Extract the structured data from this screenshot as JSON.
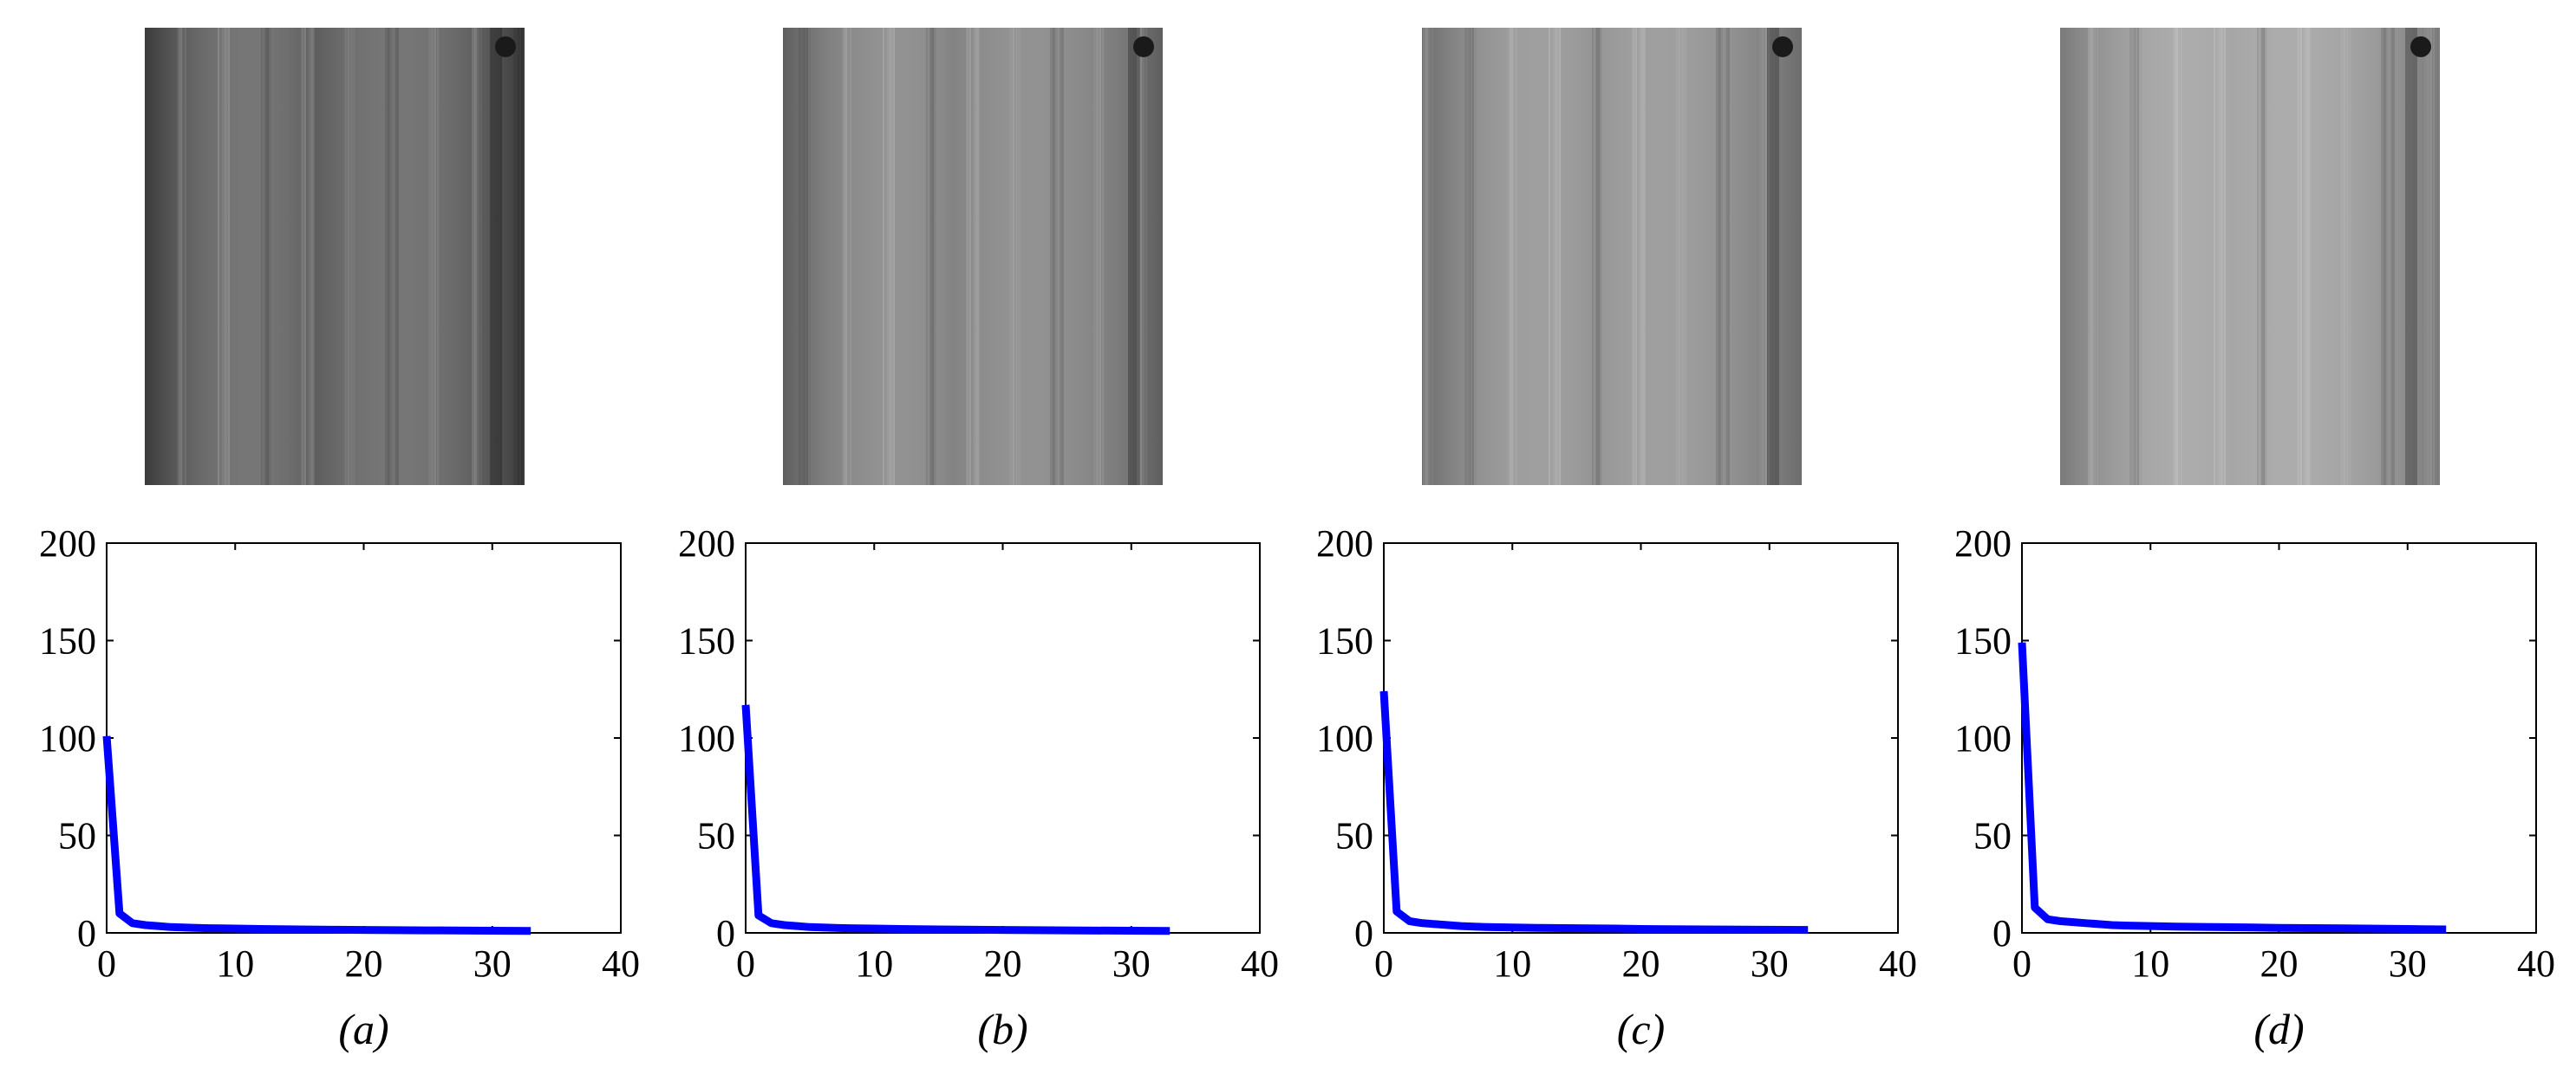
{
  "figure": {
    "captions": [
      "(a)",
      "(b)",
      "(c)",
      "(d)"
    ],
    "line_color": "#0000ff",
    "photo_description_colors": {
      "photo_a_base": "#3a3a3a",
      "photo_b_base": "#5e5e5e",
      "photo_c_base": "#6c6c6c",
      "photo_d_base": "#7a7a7a"
    }
  },
  "chart_data": [
    {
      "type": "line",
      "caption": "(a)",
      "xlim": [
        0,
        40
      ],
      "ylim": [
        0,
        200
      ],
      "xticks": [
        0,
        10,
        20,
        30,
        40
      ],
      "yticks": [
        0,
        50,
        100,
        150,
        200
      ],
      "grid": false,
      "series": [
        {
          "x": [
            0,
            1,
            2,
            3,
            4,
            5,
            6,
            7,
            8,
            10,
            12,
            15,
            18,
            20,
            25,
            30,
            33
          ],
          "y": [
            101,
            10,
            5,
            4,
            3.5,
            3,
            2.8,
            2.6,
            2.4,
            2.2,
            2,
            1.8,
            1.6,
            1.5,
            1.3,
            1.1,
            1.0
          ]
        }
      ]
    },
    {
      "type": "line",
      "caption": "(b)",
      "xlim": [
        0,
        40
      ],
      "ylim": [
        0,
        200
      ],
      "xticks": [
        0,
        10,
        20,
        30,
        40
      ],
      "yticks": [
        0,
        50,
        100,
        150,
        200
      ],
      "grid": false,
      "series": [
        {
          "x": [
            0,
            1,
            2,
            3,
            4,
            5,
            6,
            7,
            8,
            10,
            12,
            15,
            18,
            20,
            25,
            30,
            33
          ],
          "y": [
            117,
            9,
            5,
            4,
            3.5,
            3,
            2.8,
            2.6,
            2.4,
            2.2,
            2,
            1.8,
            1.6,
            1.5,
            1.3,
            1.1,
            1.0
          ]
        }
      ]
    },
    {
      "type": "line",
      "caption": "(c)",
      "xlim": [
        0,
        40
      ],
      "ylim": [
        0,
        200
      ],
      "xticks": [
        0,
        10,
        20,
        30,
        40
      ],
      "yticks": [
        0,
        50,
        100,
        150,
        200
      ],
      "grid": false,
      "series": [
        {
          "x": [
            0,
            1,
            2,
            3,
            4,
            5,
            6,
            7,
            8,
            10,
            12,
            15,
            18,
            20,
            25,
            30,
            33
          ],
          "y": [
            124,
            11,
            6,
            5,
            4.5,
            4,
            3.5,
            3.2,
            3,
            2.8,
            2.6,
            2.4,
            2.2,
            2,
            1.8,
            1.6,
            1.5
          ]
        }
      ]
    },
    {
      "type": "line",
      "caption": "(d)",
      "xlim": [
        0,
        40
      ],
      "ylim": [
        0,
        200
      ],
      "xticks": [
        0,
        10,
        20,
        30,
        40
      ],
      "yticks": [
        0,
        50,
        100,
        150,
        200
      ],
      "grid": false,
      "series": [
        {
          "x": [
            0,
            1,
            2,
            3,
            4,
            5,
            6,
            7,
            8,
            10,
            12,
            15,
            18,
            20,
            25,
            30,
            33
          ],
          "y": [
            149,
            13,
            7,
            6,
            5.5,
            5,
            4.5,
            4,
            3.8,
            3.5,
            3.2,
            3,
            2.8,
            2.6,
            2.3,
            2,
            1.8
          ]
        }
      ]
    }
  ]
}
